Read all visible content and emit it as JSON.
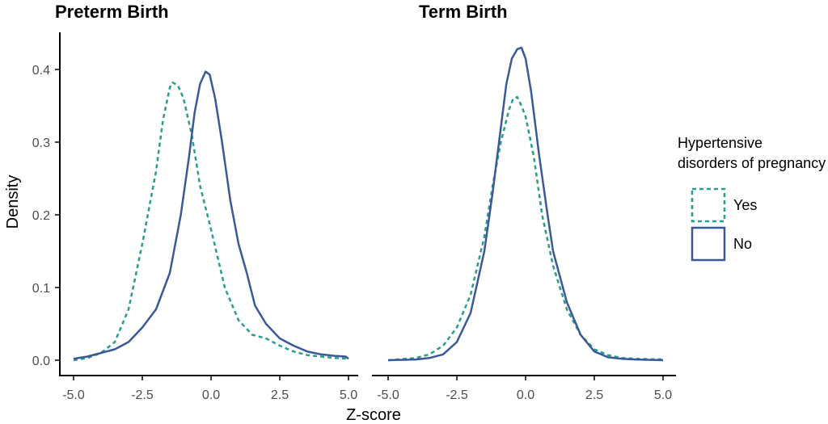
{
  "chart_data": {
    "type": "line",
    "xlabel": "Z-score",
    "ylabel": "Density",
    "xlim": [
      -5.0,
      5.0
    ],
    "ylim": [
      0.0,
      0.43
    ],
    "xticks": [
      "-5.0",
      "-2.5",
      "0.0",
      "2.5",
      "5.0"
    ],
    "yticks": [
      "0.0",
      "0.1",
      "0.2",
      "0.3",
      "0.4"
    ],
    "grid": false,
    "legend": {
      "title_lines": [
        "Hypertensive",
        "disorders of pregnancy"
      ],
      "placement": "right",
      "entries": [
        {
          "name": "Yes",
          "color": "#2a9d8f",
          "dash": "dashed"
        },
        {
          "name": "No",
          "color": "#3b5998",
          "dash": "solid"
        }
      ]
    },
    "panels": [
      {
        "title": "Preterm Birth",
        "series": [
          {
            "name": "Yes",
            "points": [
              [
                -5.0,
                0.0
              ],
              [
                -4.5,
                0.003
              ],
              [
                -4.0,
                0.01
              ],
              [
                -3.5,
                0.025
              ],
              [
                -3.0,
                0.07
              ],
              [
                -2.5,
                0.16
              ],
              [
                -2.0,
                0.26
              ],
              [
                -1.75,
                0.33
              ],
              [
                -1.5,
                0.375
              ],
              [
                -1.4,
                0.382
              ],
              [
                -1.2,
                0.378
              ],
              [
                -1.0,
                0.36
              ],
              [
                -0.7,
                0.31
              ],
              [
                -0.4,
                0.24
              ],
              [
                0.0,
                0.18
              ],
              [
                0.5,
                0.1
              ],
              [
                1.0,
                0.055
              ],
              [
                1.5,
                0.035
              ],
              [
                2.0,
                0.03
              ],
              [
                2.5,
                0.02
              ],
              [
                3.0,
                0.012
              ],
              [
                3.5,
                0.007
              ],
              [
                4.0,
                0.005
              ],
              [
                4.5,
                0.003
              ],
              [
                5.0,
                0.002
              ]
            ]
          },
          {
            "name": "No",
            "points": [
              [
                -5.0,
                0.002
              ],
              [
                -4.5,
                0.005
              ],
              [
                -4.0,
                0.01
              ],
              [
                -3.5,
                0.015
              ],
              [
                -3.0,
                0.025
              ],
              [
                -2.5,
                0.045
              ],
              [
                -2.0,
                0.07
              ],
              [
                -1.5,
                0.12
              ],
              [
                -1.1,
                0.2
              ],
              [
                -0.8,
                0.28
              ],
              [
                -0.6,
                0.34
              ],
              [
                -0.4,
                0.38
              ],
              [
                -0.2,
                0.397
              ],
              [
                -0.05,
                0.393
              ],
              [
                0.15,
                0.36
              ],
              [
                0.4,
                0.3
              ],
              [
                0.7,
                0.22
              ],
              [
                1.0,
                0.16
              ],
              [
                1.3,
                0.12
              ],
              [
                1.6,
                0.075
              ],
              [
                2.0,
                0.05
              ],
              [
                2.5,
                0.03
              ],
              [
                3.0,
                0.02
              ],
              [
                3.5,
                0.012
              ],
              [
                4.0,
                0.008
              ],
              [
                4.5,
                0.006
              ],
              [
                4.9,
                0.005
              ],
              [
                5.0,
                0.002
              ]
            ]
          }
        ]
      },
      {
        "title": "Term Birth",
        "series": [
          {
            "name": "Yes",
            "points": [
              [
                -5.0,
                0.0
              ],
              [
                -4.0,
                0.003
              ],
              [
                -3.5,
                0.008
              ],
              [
                -3.0,
                0.02
              ],
              [
                -2.5,
                0.045
              ],
              [
                -2.0,
                0.09
              ],
              [
                -1.5,
                0.17
              ],
              [
                -1.2,
                0.24
              ],
              [
                -0.9,
                0.3
              ],
              [
                -0.6,
                0.345
              ],
              [
                -0.45,
                0.36
              ],
              [
                -0.3,
                0.362
              ],
              [
                -0.15,
                0.35
              ],
              [
                0.0,
                0.335
              ],
              [
                0.3,
                0.28
              ],
              [
                0.6,
                0.2
              ],
              [
                1.0,
                0.13
              ],
              [
                1.5,
                0.07
              ],
              [
                2.0,
                0.035
              ],
              [
                2.5,
                0.015
              ],
              [
                3.0,
                0.007
              ],
              [
                3.5,
                0.003
              ],
              [
                4.0,
                0.002
              ],
              [
                5.0,
                0.001
              ]
            ]
          },
          {
            "name": "No",
            "points": [
              [
                -5.0,
                0.0
              ],
              [
                -4.0,
                0.001
              ],
              [
                -3.5,
                0.003
              ],
              [
                -3.0,
                0.008
              ],
              [
                -2.5,
                0.025
              ],
              [
                -2.0,
                0.065
              ],
              [
                -1.5,
                0.15
              ],
              [
                -1.2,
                0.23
              ],
              [
                -0.9,
                0.32
              ],
              [
                -0.7,
                0.38
              ],
              [
                -0.5,
                0.415
              ],
              [
                -0.3,
                0.428
              ],
              [
                -0.15,
                0.43
              ],
              [
                0.0,
                0.415
              ],
              [
                0.2,
                0.37
              ],
              [
                0.5,
                0.28
              ],
              [
                0.8,
                0.2
              ],
              [
                1.0,
                0.15
              ],
              [
                1.5,
                0.08
              ],
              [
                2.0,
                0.035
              ],
              [
                2.5,
                0.012
              ],
              [
                3.0,
                0.004
              ],
              [
                3.5,
                0.002
              ],
              [
                4.0,
                0.001
              ],
              [
                5.0,
                0.0
              ]
            ]
          }
        ]
      }
    ]
  }
}
